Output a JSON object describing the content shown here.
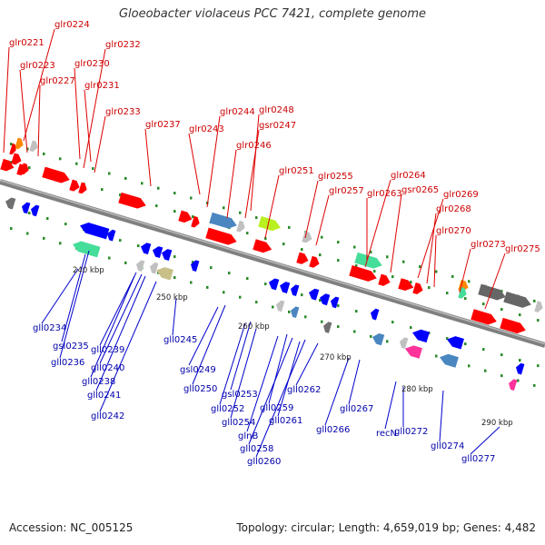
{
  "title": "Gloeobacter violaceus PCC 7421, complete genome",
  "footer": {
    "accession": "Accession: NC_005125",
    "topology": "Topology: circular; Length: 4,659,019 bp; Genes: 4,482"
  },
  "colors": {
    "forward_label": "#cc0000",
    "reverse_label": "#0000aa",
    "backbone": "#808080",
    "tick": "#2a8a2a",
    "forward_gene": "#ff0000",
    "reverse_gene": "#0000ff"
  },
  "scale_labels": [
    "240 kbp",
    "250 kbp",
    "260 kbp",
    "270 kbp",
    "280 kbp",
    "290 kbp"
  ],
  "forward_labels": [
    "glr0221",
    "glr0224",
    "glr0223",
    "glr0227",
    "glr0230",
    "glr0232",
    "glr0231",
    "glr0233",
    "glr0237",
    "glr0244",
    "glr0243",
    "glr0248",
    "gsr0247",
    "glr0246",
    "glr0251",
    "glr0255",
    "glr0257",
    "glr0264",
    "glr0263",
    "gsr0265",
    "glr0269",
    "glr0268",
    "glr0270",
    "glr0273",
    "glr0275"
  ],
  "reverse_labels": [
    "gll0234",
    "gsl0235",
    "gll0236",
    "gll0239",
    "gll0238",
    "gll0240",
    "gll0241",
    "gll0242",
    "gll0245",
    "gsl0249",
    "gll0250",
    "gsl0253",
    "gll0252",
    "gll0254",
    "glnB",
    "gll0259",
    "gll0258",
    "gll0260",
    "gll0261",
    "gll0262",
    "gll0266",
    "gll0267",
    "recN",
    "gll0272",
    "gll0274",
    "gll0277"
  ]
}
